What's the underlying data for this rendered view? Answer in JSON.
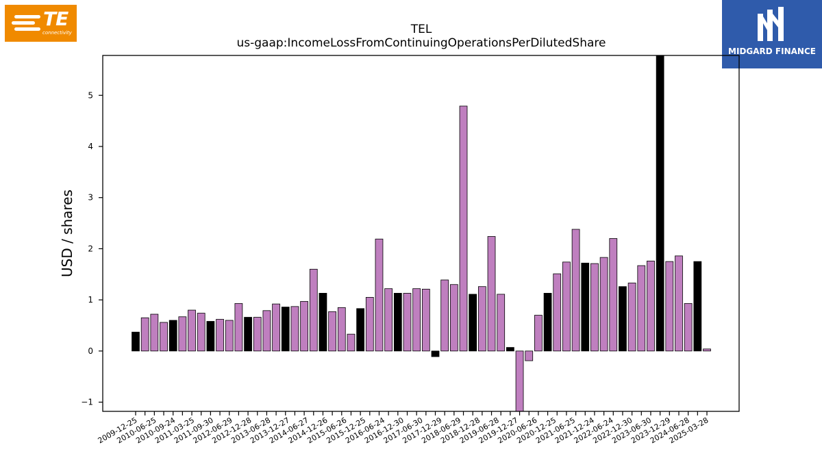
{
  "logos": {
    "left_text": "TE",
    "left_sub": "connectivity",
    "right_text": "MIDGARD FINANCE"
  },
  "chart_data": {
    "type": "bar",
    "title": "TEL",
    "subtitle": "us-gaap:IncomeLossFromContinuingOperationsPerDilutedShare",
    "ylabel": "USD / shares",
    "xlabel": "",
    "ylim": [
      -1.18,
      5.78
    ],
    "yticks": [
      -1,
      0,
      1,
      2,
      3,
      4,
      5
    ],
    "grid": false,
    "tick_labels": [
      "2009-12-25",
      "2010-06-25",
      "2010-09-24",
      "2011-03-25",
      "2011-09-30",
      "2012-06-29",
      "2012-12-28",
      "2013-06-28",
      "2013-12-27",
      "2014-06-27",
      "2014-12-26",
      "2015-06-26",
      "2015-12-25",
      "2016-06-24",
      "2016-12-30",
      "2017-06-30",
      "2017-12-29",
      "2018-06-29",
      "2018-12-28",
      "2019-06-28",
      "2019-12-27",
      "2020-06-26",
      "2020-12-25",
      "2021-06-25",
      "2021-12-24",
      "2022-06-24",
      "2022-12-30",
      "2023-06-30",
      "2023-12-29",
      "2024-06-28",
      "2025-03-28"
    ],
    "values": [
      0.37,
      0.65,
      0.72,
      0.56,
      0.6,
      0.67,
      0.8,
      0.74,
      0.58,
      0.62,
      0.6,
      0.93,
      0.66,
      0.66,
      0.79,
      0.92,
      0.86,
      0.87,
      0.97,
      1.6,
      1.13,
      0.77,
      0.85,
      0.33,
      0.83,
      1.05,
      2.19,
      1.22,
      1.13,
      1.13,
      1.22,
      1.21,
      -0.11,
      1.39,
      1.3,
      4.79,
      1.11,
      1.26,
      2.24,
      1.11,
      0.07,
      -1.18,
      -0.19,
      0.7,
      1.13,
      1.51,
      1.74,
      2.38,
      1.72,
      1.71,
      1.83,
      2.2,
      1.26,
      1.33,
      1.67,
      1.76,
      5.78,
      1.75,
      1.86,
      0.93,
      1.75,
      0.04
    ],
    "bar_types": [
      "fy",
      "q",
      "q",
      "q",
      "fy",
      "q",
      "q",
      "q",
      "fy",
      "q",
      "q",
      "q",
      "fy",
      "q",
      "q",
      "q",
      "fy",
      "q",
      "q",
      "q",
      "fy",
      "q",
      "q",
      "q",
      "fy",
      "q",
      "q",
      "q",
      "fy",
      "q",
      "q",
      "q",
      "fy",
      "q",
      "q",
      "q",
      "fy",
      "q",
      "q",
      "q",
      "fy",
      "q",
      "q",
      "q",
      "fy",
      "q",
      "q",
      "q",
      "fy",
      "q",
      "q",
      "q",
      "fy",
      "q",
      "q",
      "q",
      "fy",
      "q",
      "q",
      "q",
      "fy",
      "q"
    ],
    "colors": {
      "fy": "#000000",
      "q": "#bf7fbf",
      "edge": "#000000"
    }
  }
}
